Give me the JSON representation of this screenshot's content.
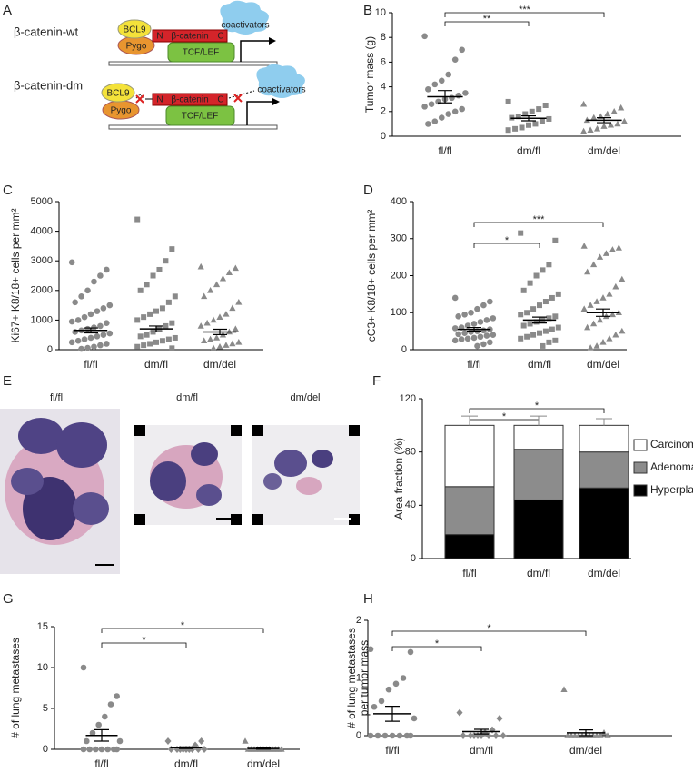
{
  "diagram": {
    "panel": "A",
    "wt": {
      "title": "β-catenin-wt",
      "bcl9": "BCL9",
      "pygo": "Pygo",
      "n": "N",
      "beta": "β-catenin",
      "c": "C",
      "tcf": "TCF/LEF",
      "coact": "coactivators"
    },
    "dm": {
      "title": "β-catenin-dm",
      "bcl9": "BCL9",
      "pygo": "Pygo",
      "n": "N",
      "beta": "β-catenin",
      "c": "C",
      "tcf": "TCF/LEF",
      "coact": "coactivators"
    }
  },
  "images": {
    "panel": "E",
    "labels": [
      "fl/fl",
      "dm/fl",
      "dm/del"
    ]
  },
  "chart_data": [
    {
      "type": "dotplot",
      "panel": "B",
      "ylabel": "Tumor mass (g)",
      "ylim": [
        0,
        10
      ],
      "yticks": [
        0,
        2,
        4,
        6,
        8,
        10
      ],
      "categories": [
        "fl/fl",
        "dm/fl",
        "dm/del"
      ],
      "color": "#8a8a8a",
      "groups": [
        {
          "marker": "circle",
          "values": [
            8.1,
            7.0,
            6.2,
            5.0,
            4.5,
            4.2,
            3.8,
            3.5,
            3.3,
            3.1,
            3.0,
            2.8,
            2.6,
            2.4,
            2.2,
            2.0,
            1.8,
            1.5,
            1.2,
            1.0
          ],
          "mean": 3.2,
          "sem": 0.5
        },
        {
          "marker": "square",
          "values": [
            2.8,
            2.5,
            2.2,
            2.0,
            1.8,
            1.6,
            1.5,
            1.4,
            1.2,
            1.0,
            0.9,
            0.7,
            0.6,
            0.5
          ],
          "mean": 1.45,
          "sem": 0.2
        },
        {
          "marker": "triangle",
          "values": [
            2.6,
            2.3,
            2.0,
            1.8,
            1.6,
            1.5,
            1.3,
            1.2,
            1.0,
            0.9,
            0.8,
            0.6,
            0.5,
            0.4
          ],
          "mean": 1.3,
          "sem": 0.2
        }
      ],
      "brackets": [
        {
          "between": [
            0,
            1
          ],
          "label": "**"
        },
        {
          "between": [
            0,
            2
          ],
          "label": "***"
        }
      ]
    },
    {
      "type": "dotplot",
      "panel": "C",
      "ylabel": "Ki67+ K8/18+ cells per mm²",
      "ylim": [
        0,
        5000
      ],
      "yticks": [
        0,
        1000,
        2000,
        3000,
        4000,
        5000
      ],
      "categories": [
        "fl/fl",
        "dm/fl",
        "dm/del"
      ],
      "color": "#8a8a8a",
      "groups": [
        {
          "marker": "circle",
          "values": [
            2950,
            2700,
            2500,
            2300,
            2000,
            1800,
            1600,
            1500,
            1400,
            1300,
            1200,
            1100,
            1000,
            950,
            900,
            800,
            750,
            700,
            650,
            600,
            550,
            500,
            450,
            400,
            350,
            300,
            250,
            200,
            150,
            100,
            60,
            30
          ],
          "mean": 650,
          "sem": 85
        },
        {
          "marker": "square",
          "values": [
            4400,
            3400,
            3000,
            2700,
            2500,
            2200,
            2000,
            1800,
            1600,
            1400,
            1300,
            1200,
            1100,
            1000,
            900,
            800,
            700,
            600,
            500,
            450,
            400,
            350,
            300,
            250,
            200,
            150,
            100,
            50
          ],
          "mean": 700,
          "sem": 100
        },
        {
          "marker": "triangle",
          "values": [
            2800,
            2750,
            2600,
            2400,
            2200,
            2000,
            1800,
            1600,
            1400,
            1200,
            1100,
            1000,
            900,
            800,
            700,
            600,
            500,
            400,
            350,
            300,
            250,
            200,
            150,
            100,
            50
          ],
          "mean": 600,
          "sem": 90
        }
      ],
      "brackets": []
    },
    {
      "type": "dotplot",
      "panel": "D",
      "ylabel": "cC3+ K8/18+ cells per mm²",
      "ylim": [
        0,
        400
      ],
      "yticks": [
        0,
        100,
        200,
        300,
        400
      ],
      "categories": [
        "fl/fl",
        "dm/fl",
        "dm/del"
      ],
      "color": "#8a8a8a",
      "groups": [
        {
          "marker": "circle",
          "values": [
            140,
            130,
            120,
            110,
            100,
            95,
            90,
            85,
            80,
            75,
            70,
            65,
            60,
            58,
            55,
            52,
            50,
            48,
            45,
            42,
            40,
            38,
            35,
            32,
            30,
            28,
            25,
            20,
            15,
            10
          ],
          "mean": 55,
          "sem": 5
        },
        {
          "marker": "square",
          "values": [
            315,
            295,
            230,
            215,
            200,
            180,
            160,
            150,
            140,
            130,
            120,
            110,
            100,
            95,
            90,
            85,
            80,
            75,
            70,
            65,
            60,
            55,
            50,
            45,
            40,
            35,
            30,
            25,
            20,
            10
          ],
          "mean": 80,
          "sem": 8
        },
        {
          "marker": "triangle",
          "values": [
            280,
            275,
            270,
            260,
            250,
            230,
            210,
            190,
            170,
            150,
            140,
            130,
            120,
            110,
            100,
            95,
            90,
            80,
            70,
            60,
            50,
            40,
            30,
            20,
            10,
            5
          ],
          "mean": 100,
          "sem": 10
        }
      ],
      "brackets": [
        {
          "between": [
            0,
            1
          ],
          "label": "*"
        },
        {
          "between": [
            0,
            2
          ],
          "label": "***"
        }
      ]
    },
    {
      "type": "stacked_bar",
      "panel": "F",
      "ylabel": "Area fraction (%)",
      "ylim": [
        0,
        120
      ],
      "yticks": [
        0,
        40,
        80,
        120
      ],
      "categories": [
        "fl/fl",
        "dm/fl",
        "dm/del"
      ],
      "series": [
        {
          "name": "Hyperplasia",
          "color": "#000000",
          "values": [
            18,
            44,
            53
          ],
          "errors": [
            5,
            10,
            6
          ]
        },
        {
          "name": "Adenoma",
          "color": "#8c8c8c",
          "values": [
            36,
            38,
            27
          ],
          "errors": [
            7,
            10,
            3
          ]
        },
        {
          "name": "Carcinoma",
          "color": "#ffffff",
          "values": [
            46,
            18,
            20
          ],
          "errors": [
            7,
            7,
            5
          ]
        }
      ],
      "brackets": [
        {
          "between": [
            0,
            1
          ],
          "label": "*"
        },
        {
          "between": [
            0,
            2
          ],
          "label": "*"
        }
      ]
    },
    {
      "type": "dotplot",
      "panel": "G",
      "ylabel": "# of lung metastases",
      "ylim": [
        0,
        15
      ],
      "yticks": [
        0,
        5,
        10,
        15
      ],
      "categories": [
        "fl/fl",
        "dm/fl",
        "dm/del"
      ],
      "color": "#8a8a8a",
      "groups": [
        {
          "marker": "circle",
          "values": [
            10,
            6.5,
            5.5,
            4,
            3,
            2,
            1,
            1,
            0,
            0,
            0,
            0,
            0,
            0,
            0
          ],
          "mean": 1.7,
          "sem": 0.7
        },
        {
          "marker": "diamond",
          "values": [
            1,
            1,
            0.5,
            0,
            0,
            0,
            0,
            0,
            0,
            0,
            0,
            0
          ],
          "mean": 0.2,
          "sem": 0.1
        },
        {
          "marker": "triangle",
          "values": [
            1,
            0,
            0,
            0,
            0,
            0,
            0,
            0,
            0,
            0,
            0,
            0,
            0
          ],
          "mean": 0.1,
          "sem": 0.08
        }
      ],
      "brackets": [
        {
          "between": [
            0,
            1
          ],
          "label": "*"
        },
        {
          "between": [
            0,
            2
          ],
          "label": "*"
        }
      ]
    },
    {
      "type": "dotplot",
      "panel": "H",
      "ylabel": [
        "# of lung metastases",
        "per tumor mass"
      ],
      "ylim": [
        0,
        2
      ],
      "yticks": [
        0,
        1,
        2
      ],
      "categories": [
        "fl/fl",
        "dm/fl",
        "dm/del"
      ],
      "color": "#8a8a8a",
      "groups": [
        {
          "marker": "circle",
          "values": [
            1.5,
            1.45,
            1.0,
            0.9,
            0.8,
            0.6,
            0.5,
            0.3,
            0,
            0,
            0,
            0,
            0,
            0,
            0
          ],
          "mean": 0.38,
          "sem": 0.13
        },
        {
          "marker": "diamond",
          "values": [
            0.4,
            0.3,
            0.1,
            0.05,
            0,
            0,
            0,
            0,
            0,
            0,
            0,
            0
          ],
          "mean": 0.07,
          "sem": 0.04
        },
        {
          "marker": "triangle",
          "values": [
            0.8,
            0.05,
            0,
            0,
            0,
            0,
            0,
            0,
            0,
            0,
            0,
            0,
            0
          ],
          "mean": 0.05,
          "sem": 0.05
        }
      ],
      "brackets": [
        {
          "between": [
            0,
            1
          ],
          "label": "*"
        },
        {
          "between": [
            0,
            2
          ],
          "label": "*"
        }
      ]
    }
  ]
}
